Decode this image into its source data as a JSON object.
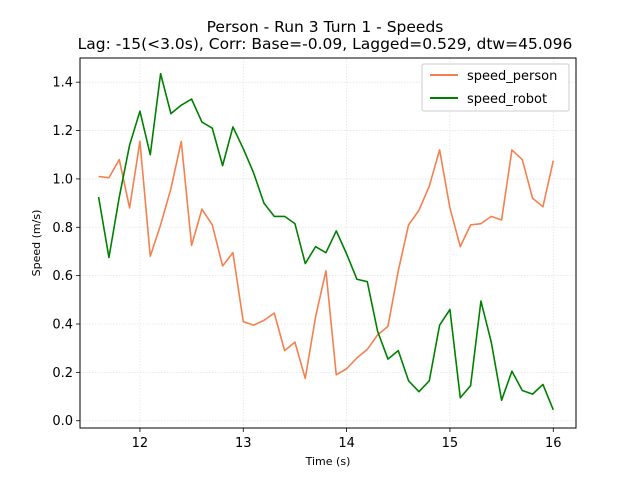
{
  "chart_data": {
    "type": "line",
    "title": "Person - Run 3 Turn 1 - Speeds",
    "subtitle": "Lag: -15(<3.0s), Corr: Base=-0.09, Lagged=0.529, dtw=45.096",
    "xlabel": "Time (s)",
    "ylabel": "Speed (m/s)",
    "xlim": [
      11.42,
      16.22
    ],
    "ylim": [
      -0.03,
      1.5
    ],
    "xticks": [
      12,
      13,
      14,
      15,
      16
    ],
    "yticks": [
      0.0,
      0.2,
      0.4,
      0.6,
      0.8,
      1.0,
      1.2,
      1.4
    ],
    "xtick_labels": [
      "12",
      "13",
      "14",
      "15",
      "16"
    ],
    "ytick_labels": [
      "0.0",
      "0.2",
      "0.4",
      "0.6",
      "0.8",
      "1.0",
      "1.2",
      "1.4"
    ],
    "grid": true,
    "legend_position": "top-right",
    "x": [
      11.6,
      11.7,
      11.8,
      11.9,
      12.0,
      12.1,
      12.2,
      12.3,
      12.4,
      12.5,
      12.6,
      12.7,
      12.8,
      12.9,
      13.0,
      13.1,
      13.2,
      13.3,
      13.4,
      13.5,
      13.6,
      13.7,
      13.8,
      13.9,
      14.0,
      14.1,
      14.2,
      14.3,
      14.4,
      14.5,
      14.6,
      14.7,
      14.8,
      14.9,
      15.0,
      15.1,
      15.2,
      15.3,
      15.4,
      15.5,
      15.6,
      15.7,
      15.8,
      15.9,
      16.0
    ],
    "series": [
      {
        "name": "speed_person",
        "color": "#f5804f",
        "values": [
          1.01,
          1.005,
          1.08,
          0.88,
          1.155,
          0.68,
          0.81,
          0.96,
          1.155,
          0.725,
          0.875,
          0.81,
          0.64,
          0.695,
          0.41,
          0.395,
          0.415,
          0.445,
          0.29,
          0.325,
          0.175,
          0.43,
          0.62,
          0.19,
          0.215,
          0.26,
          0.295,
          0.355,
          0.39,
          0.62,
          0.81,
          0.87,
          0.97,
          1.12,
          0.88,
          0.72,
          0.81,
          0.815,
          0.845,
          0.83,
          1.12,
          1.08,
          0.92,
          0.885,
          1.075
        ]
      },
      {
        "name": "speed_robot",
        "color": "#008000",
        "values": [
          0.925,
          0.675,
          0.925,
          1.14,
          1.28,
          1.1,
          1.435,
          1.27,
          1.305,
          1.33,
          1.235,
          1.21,
          1.055,
          1.215,
          1.125,
          1.025,
          0.9,
          0.845,
          0.845,
          0.815,
          0.65,
          0.72,
          0.695,
          0.785,
          0.69,
          0.585,
          0.575,
          0.37,
          0.255,
          0.29,
          0.165,
          0.12,
          0.165,
          0.395,
          0.46,
          0.095,
          0.145,
          0.495,
          0.325,
          0.085,
          0.205,
          0.125,
          0.11,
          0.15,
          0.045
        ]
      }
    ]
  }
}
